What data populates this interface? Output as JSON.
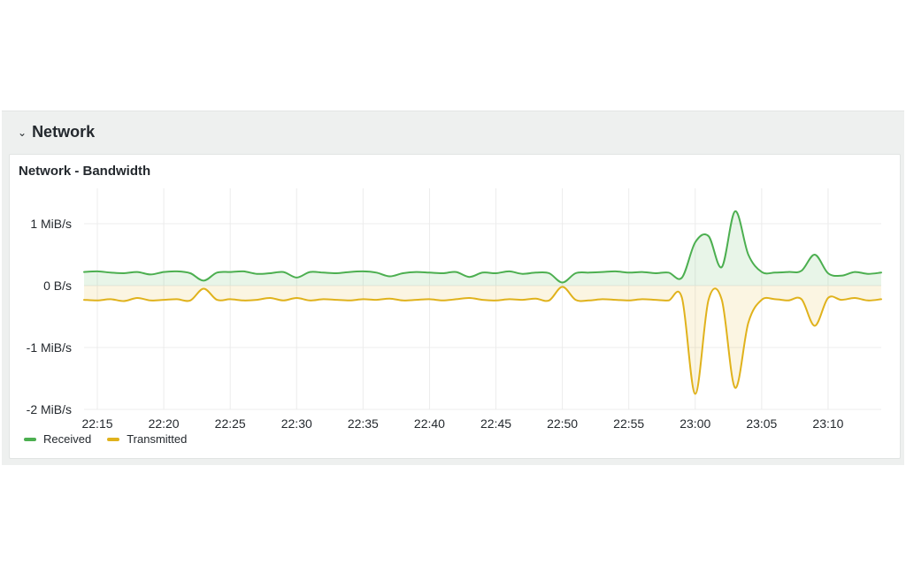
{
  "row": {
    "title": "Network",
    "chevron_icon": "chevron-down-icon"
  },
  "panel": {
    "title": "Network - Bandwidth"
  },
  "colors": {
    "received": "#4caf50",
    "transmitted": "#e0b21c",
    "grid": "#ececec"
  },
  "chart_data": {
    "type": "area",
    "title": "Network - Bandwidth",
    "xlabel": "",
    "ylabel": "",
    "y_unit": "MiB/s",
    "ylim": [
      -2.0,
      1.4
    ],
    "y_ticks": [
      {
        "value": 1,
        "label": "1 MiB/s"
      },
      {
        "value": 0,
        "label": "0 B/s"
      },
      {
        "value": -1,
        "label": "-1 MiB/s"
      },
      {
        "value": -2,
        "label": "-2 MiB/s"
      }
    ],
    "x_ticks": [
      "22:15",
      "22:20",
      "22:25",
      "22:30",
      "22:35",
      "22:40",
      "22:45",
      "22:50",
      "22:55",
      "23:00",
      "23:05",
      "23:10"
    ],
    "xlim": [
      "22:14",
      "23:14"
    ],
    "grid": true,
    "legend_position": "bottom-left",
    "series": [
      {
        "name": "Received",
        "x": [
          "22:14",
          "22:15",
          "22:16",
          "22:17",
          "22:18",
          "22:19",
          "22:20",
          "22:21",
          "22:22",
          "22:23",
          "22:24",
          "22:25",
          "22:26",
          "22:27",
          "22:28",
          "22:29",
          "22:30",
          "22:31",
          "22:32",
          "22:33",
          "22:34",
          "22:35",
          "22:36",
          "22:37",
          "22:38",
          "22:39",
          "22:40",
          "22:41",
          "22:42",
          "22:43",
          "22:44",
          "22:45",
          "22:46",
          "22:47",
          "22:48",
          "22:49",
          "22:50",
          "22:51",
          "22:52",
          "22:53",
          "22:54",
          "22:55",
          "22:56",
          "22:57",
          "22:58",
          "22:59",
          "23:00",
          "23:01",
          "23:02",
          "23:03",
          "23:04",
          "23:05",
          "23:06",
          "23:07",
          "23:08",
          "23:09",
          "23:10",
          "23:11",
          "23:12",
          "23:13",
          "23:14"
        ],
        "values": [
          0.22,
          0.23,
          0.21,
          0.2,
          0.22,
          0.18,
          0.22,
          0.23,
          0.2,
          0.08,
          0.21,
          0.22,
          0.23,
          0.19,
          0.2,
          0.22,
          0.13,
          0.22,
          0.21,
          0.2,
          0.22,
          0.23,
          0.21,
          0.15,
          0.2,
          0.22,
          0.21,
          0.2,
          0.22,
          0.14,
          0.21,
          0.2,
          0.23,
          0.19,
          0.21,
          0.2,
          0.05,
          0.2,
          0.21,
          0.22,
          0.23,
          0.21,
          0.22,
          0.2,
          0.21,
          0.13,
          0.7,
          0.8,
          0.3,
          1.2,
          0.5,
          0.22,
          0.21,
          0.22,
          0.24,
          0.5,
          0.2,
          0.16,
          0.22,
          0.19,
          0.21
        ]
      },
      {
        "name": "Transmitted",
        "x": [
          "22:14",
          "22:15",
          "22:16",
          "22:17",
          "22:18",
          "22:19",
          "22:20",
          "22:21",
          "22:22",
          "22:23",
          "22:24",
          "22:25",
          "22:26",
          "22:27",
          "22:28",
          "22:29",
          "22:30",
          "22:31",
          "22:32",
          "22:33",
          "22:34",
          "22:35",
          "22:36",
          "22:37",
          "22:38",
          "22:39",
          "22:40",
          "22:41",
          "22:42",
          "22:43",
          "22:44",
          "22:45",
          "22:46",
          "22:47",
          "22:48",
          "22:49",
          "22:50",
          "22:51",
          "22:52",
          "22:53",
          "22:54",
          "22:55",
          "22:56",
          "22:57",
          "22:58",
          "22:59",
          "23:00",
          "23:01",
          "23:02",
          "23:03",
          "23:04",
          "23:05",
          "23:06",
          "23:07",
          "23:08",
          "23:09",
          "23:10",
          "23:11",
          "23:12",
          "23:13",
          "23:14"
        ],
        "values": [
          -0.23,
          -0.24,
          -0.22,
          -0.25,
          -0.2,
          -0.24,
          -0.23,
          -0.22,
          -0.24,
          -0.05,
          -0.23,
          -0.22,
          -0.24,
          -0.23,
          -0.2,
          -0.24,
          -0.2,
          -0.24,
          -0.22,
          -0.23,
          -0.24,
          -0.22,
          -0.23,
          -0.21,
          -0.24,
          -0.23,
          -0.22,
          -0.24,
          -0.22,
          -0.2,
          -0.23,
          -0.24,
          -0.22,
          -0.23,
          -0.21,
          -0.24,
          -0.02,
          -0.23,
          -0.24,
          -0.22,
          -0.23,
          -0.24,
          -0.22,
          -0.23,
          -0.24,
          -0.2,
          -1.75,
          -0.23,
          -0.23,
          -1.65,
          -0.6,
          -0.23,
          -0.22,
          -0.24,
          -0.22,
          -0.65,
          -0.2,
          -0.23,
          -0.2,
          -0.24,
          -0.22
        ]
      }
    ]
  },
  "legend": [
    {
      "label": "Received"
    },
    {
      "label": "Transmitted"
    }
  ]
}
